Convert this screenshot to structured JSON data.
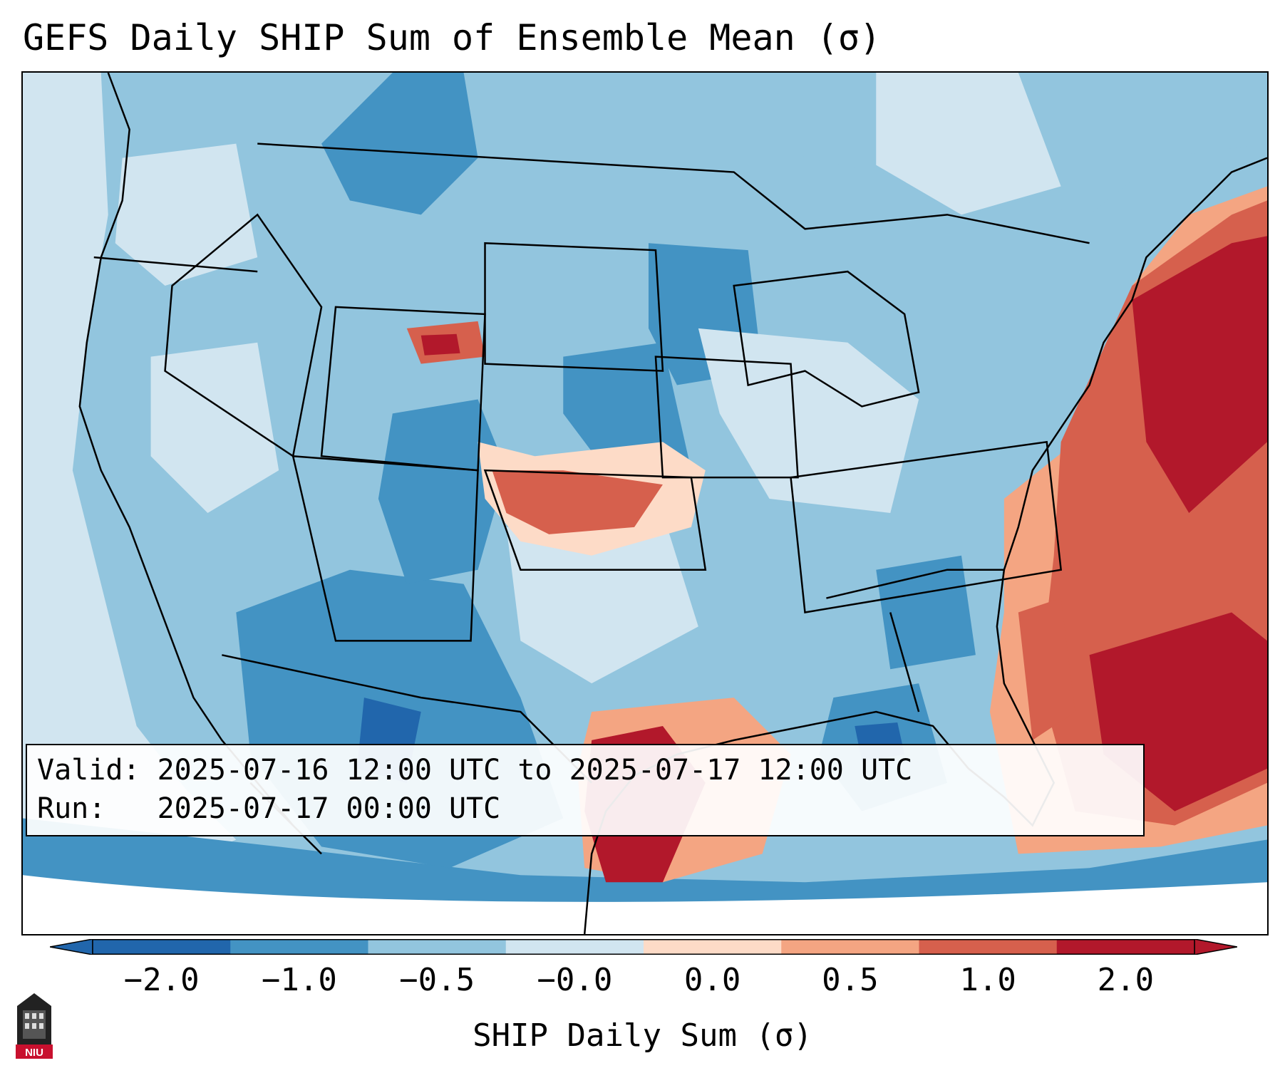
{
  "title": "GEFS Daily SHIP Sum of Ensemble Mean (σ)",
  "info": {
    "valid_label": "Valid:",
    "valid_value": "2025-07-16 12:00 UTC to 2025-07-17 12:00 UTC",
    "run_label": "Run:",
    "run_value": "2025-07-17 00:00 UTC"
  },
  "colorbar": {
    "label": "SHIP Daily Sum (σ)",
    "ticks": [
      "−2.0",
      "−1.0",
      "−0.5",
      "−0.0",
      "0.0",
      "0.5",
      "1.0",
      "2.0"
    ],
    "colors": [
      "#2166ac",
      "#4393c3",
      "#92c5de",
      "#d1e5f0",
      "#fddbc7",
      "#f4a582",
      "#d6604d",
      "#b2182b"
    ],
    "extend": "both"
  },
  "logo": {
    "text": "NIU",
    "icon": "university-tower-icon"
  },
  "map": {
    "region": "CONUS",
    "background_color": "#d3e6f1",
    "border_color": "#000000"
  }
}
